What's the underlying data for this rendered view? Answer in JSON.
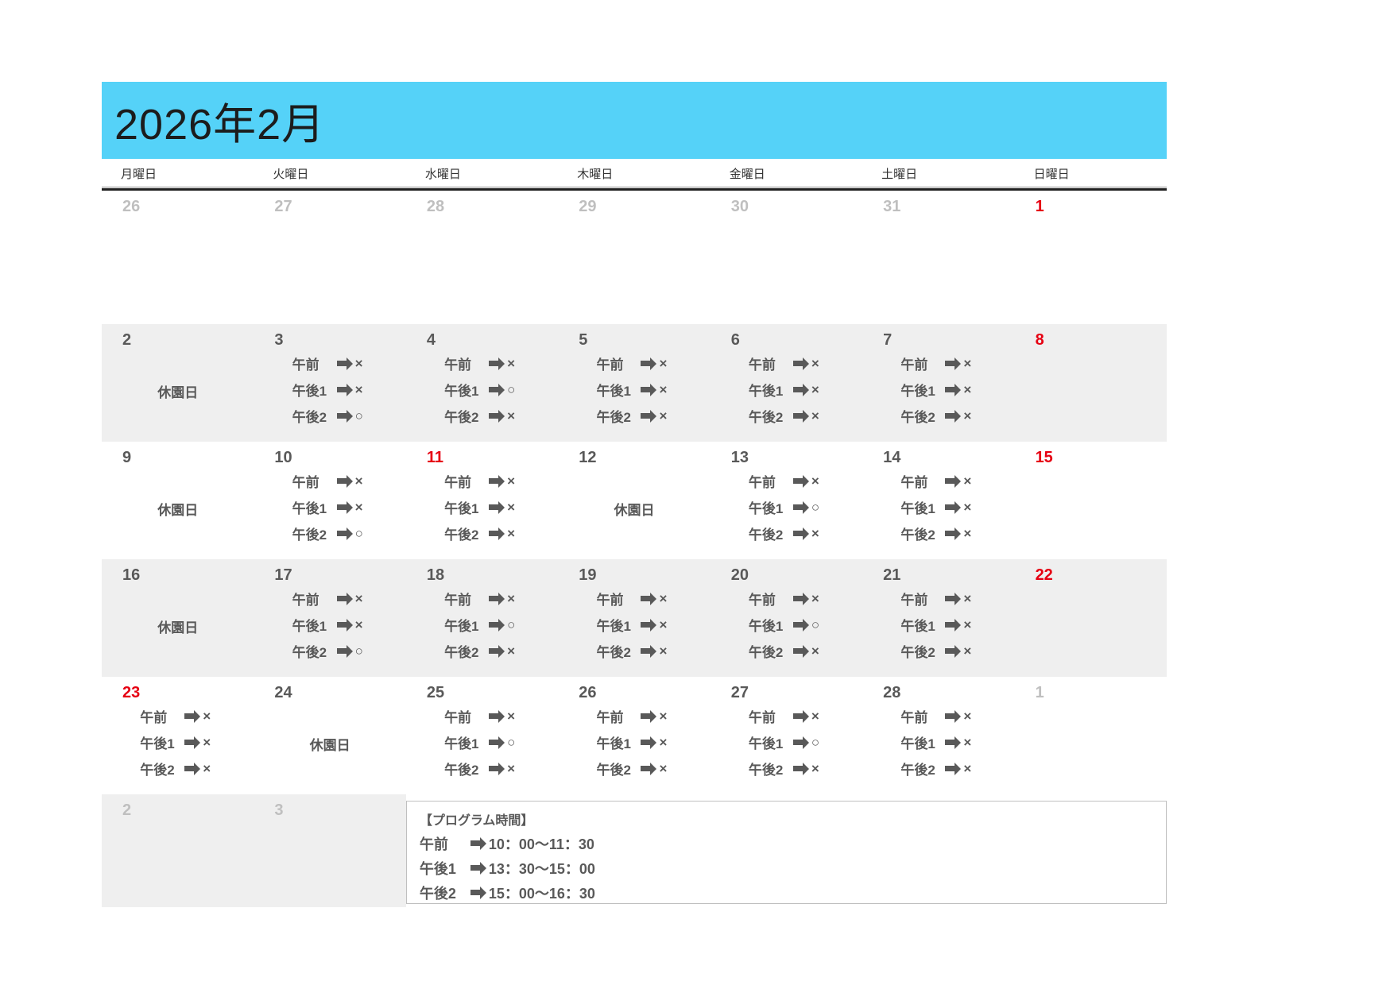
{
  "title": "2026年2月",
  "colors": {
    "header_bg": "#55d2f8",
    "holiday_red": "#e60012",
    "muted_gray": "#bfbfbf",
    "text_gray": "#595959",
    "row_alt_bg": "#efefef"
  },
  "day_headers": [
    "月曜日",
    "火曜日",
    "水曜日",
    "木曜日",
    "金曜日",
    "土曜日",
    "日曜日"
  ],
  "closed_label": "休園日",
  "program_labels": [
    "午前",
    "午後1",
    "午後2"
  ],
  "weeks": [
    {
      "shaded": false,
      "days": [
        {
          "date": "26",
          "style": "muted"
        },
        {
          "date": "27",
          "style": "muted"
        },
        {
          "date": "28",
          "style": "muted"
        },
        {
          "date": "29",
          "style": "muted"
        },
        {
          "date": "30",
          "style": "muted"
        },
        {
          "date": "31",
          "style": "muted"
        },
        {
          "date": "1",
          "style": "red"
        }
      ]
    },
    {
      "shaded": true,
      "days": [
        {
          "date": "2",
          "style": "normal",
          "closed": true
        },
        {
          "date": "3",
          "style": "normal",
          "programs": [
            "×",
            "×",
            "○"
          ]
        },
        {
          "date": "4",
          "style": "normal",
          "programs": [
            "×",
            "○",
            "×"
          ]
        },
        {
          "date": "5",
          "style": "normal",
          "programs": [
            "×",
            "×",
            "×"
          ]
        },
        {
          "date": "6",
          "style": "normal",
          "programs": [
            "×",
            "×",
            "×"
          ]
        },
        {
          "date": "7",
          "style": "normal",
          "programs": [
            "×",
            "×",
            "×"
          ]
        },
        {
          "date": "8",
          "style": "red"
        }
      ]
    },
    {
      "shaded": false,
      "days": [
        {
          "date": "9",
          "style": "normal",
          "closed": true
        },
        {
          "date": "10",
          "style": "normal",
          "programs": [
            "×",
            "×",
            "○"
          ]
        },
        {
          "date": "11",
          "style": "red",
          "programs": [
            "×",
            "×",
            "×"
          ]
        },
        {
          "date": "12",
          "style": "normal",
          "closed": true
        },
        {
          "date": "13",
          "style": "normal",
          "programs": [
            "×",
            "○",
            "×"
          ]
        },
        {
          "date": "14",
          "style": "normal",
          "programs": [
            "×",
            "×",
            "×"
          ]
        },
        {
          "date": "15",
          "style": "red"
        }
      ]
    },
    {
      "shaded": true,
      "days": [
        {
          "date": "16",
          "style": "normal",
          "closed": true
        },
        {
          "date": "17",
          "style": "normal",
          "programs": [
            "×",
            "×",
            "○"
          ]
        },
        {
          "date": "18",
          "style": "normal",
          "programs": [
            "×",
            "○",
            "×"
          ]
        },
        {
          "date": "19",
          "style": "normal",
          "programs": [
            "×",
            "×",
            "×"
          ]
        },
        {
          "date": "20",
          "style": "normal",
          "programs": [
            "×",
            "○",
            "×"
          ]
        },
        {
          "date": "21",
          "style": "normal",
          "programs": [
            "×",
            "×",
            "×"
          ]
        },
        {
          "date": "22",
          "style": "red"
        }
      ]
    },
    {
      "shaded": false,
      "days": [
        {
          "date": "23",
          "style": "red",
          "programs": [
            "×",
            "×",
            "×"
          ]
        },
        {
          "date": "24",
          "style": "normal",
          "closed": true
        },
        {
          "date": "25",
          "style": "normal",
          "programs": [
            "×",
            "○",
            "×"
          ]
        },
        {
          "date": "26",
          "style": "normal",
          "programs": [
            "×",
            "×",
            "×"
          ]
        },
        {
          "date": "27",
          "style": "normal",
          "programs": [
            "×",
            "○",
            "×"
          ]
        },
        {
          "date": "28",
          "style": "normal",
          "programs": [
            "×",
            "×",
            "×"
          ]
        },
        {
          "date": "1",
          "style": "muted"
        }
      ]
    },
    {
      "shaded": true,
      "days": [
        {
          "date": "2",
          "style": "muted"
        },
        {
          "date": "3",
          "style": "muted"
        }
      ]
    }
  ],
  "legend": {
    "title": "【プログラム時間】",
    "items": [
      {
        "label": "午前",
        "time": "10：00～11：30"
      },
      {
        "label": "午後1",
        "time": "13：30～15：00"
      },
      {
        "label": "午後2",
        "time": "15：00～16：30"
      }
    ]
  }
}
